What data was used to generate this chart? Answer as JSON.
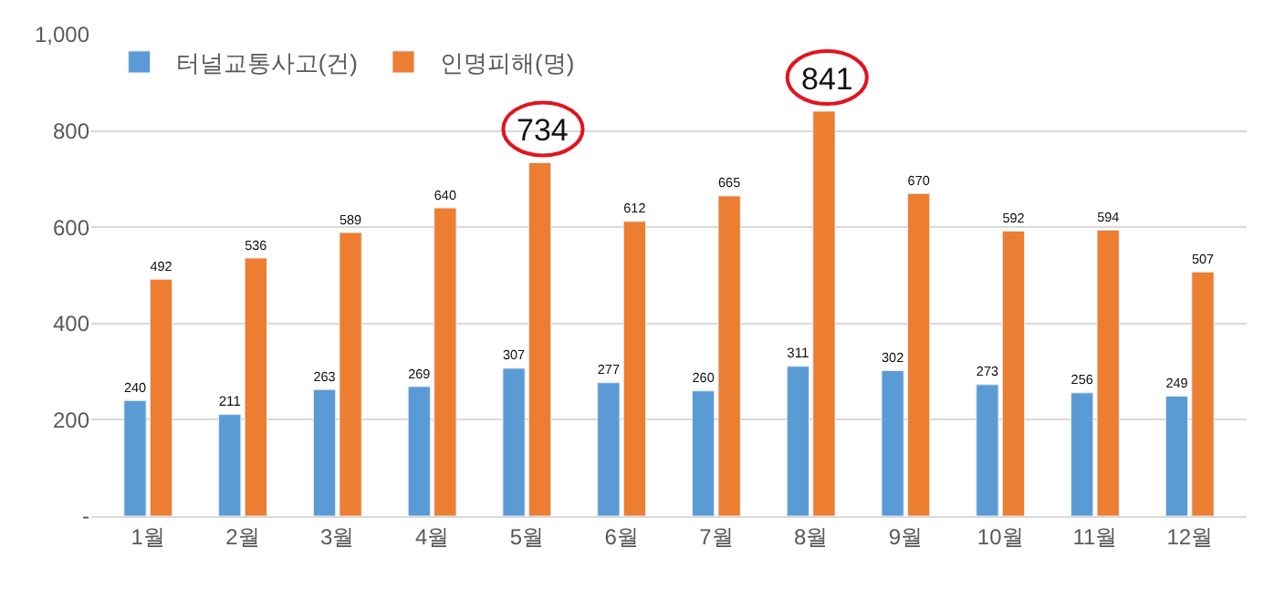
{
  "chart_data": {
    "type": "bar",
    "categories": [
      "1월",
      "2월",
      "3월",
      "4월",
      "5월",
      "6월",
      "7월",
      "8월",
      "9월",
      "10월",
      "11월",
      "12월"
    ],
    "series": [
      {
        "name": "터널교통사고(건)",
        "color": "#5b9bd5",
        "values": [
          240,
          211,
          263,
          269,
          307,
          277,
          260,
          311,
          302,
          273,
          256,
          249
        ],
        "value_labels": [
          "240",
          "211",
          "263",
          "269",
          "307",
          "277",
          "260",
          "311",
          "302",
          "273",
          "256",
          "249"
        ]
      },
      {
        "name": "인명피해(명)",
        "color": "#ed7d31",
        "values": [
          492,
          536,
          589,
          640,
          734,
          612,
          665,
          841,
          670,
          592,
          594,
          507
        ],
        "value_labels": [
          "492",
          "536",
          "589",
          "640",
          null,
          "612",
          "665",
          null,
          "670",
          "592",
          "594",
          "507"
        ]
      }
    ],
    "annotations": [
      {
        "text": "734",
        "x": "5월",
        "y": 734
      },
      {
        "text": "841",
        "x": "8월",
        "y": 841
      }
    ],
    "ylim": [
      0,
      1000
    ],
    "yticks": [
      {
        "value": 0,
        "label": "-"
      },
      200,
      400,
      600,
      800,
      {
        "value": 1000,
        "label": "1,000"
      }
    ],
    "grid": "y",
    "legend": "top left"
  }
}
